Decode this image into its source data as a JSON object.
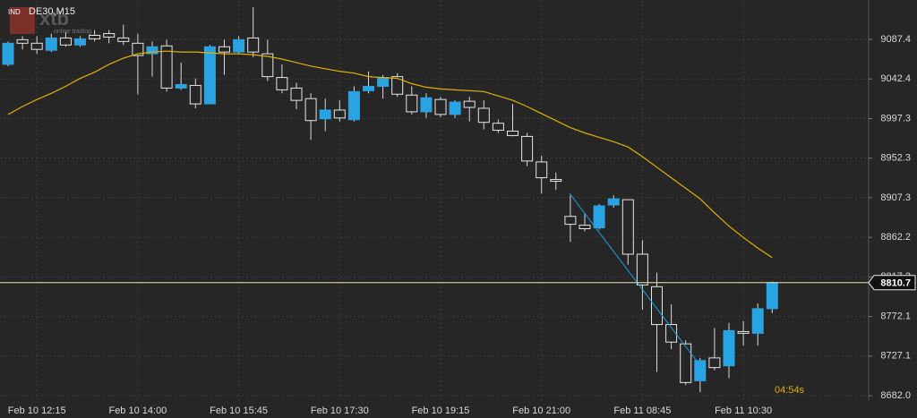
{
  "chart_data": {
    "type": "candlestick",
    "title": "DE30,M15",
    "logo": {
      "badge": "IND",
      "brand": "xtb",
      "tagline": "online trading"
    },
    "timer": "04:54s",
    "categories": [
      null,
      null,
      "Feb 10 12:15",
      null,
      null,
      null,
      null,
      null,
      null,
      "Feb 10 14:00",
      null,
      null,
      null,
      null,
      null,
      null,
      "Feb 10 15:45",
      null,
      null,
      null,
      null,
      null,
      null,
      "Feb 10 17:30",
      null,
      null,
      null,
      null,
      null,
      null,
      "Feb 10 19:15",
      null,
      null,
      null,
      null,
      null,
      null,
      "Feb 10 21:00",
      null,
      null,
      null,
      null,
      null,
      null,
      "Feb 11 08:45",
      null,
      null,
      null,
      null,
      null,
      null,
      "Feb 11 10:30",
      null,
      null
    ],
    "open": [
      9059,
      9087,
      9083,
      9075,
      9089,
      9081,
      9092,
      9094,
      9089,
      9083,
      9071,
      9080,
      9032,
      9035,
      9014,
      9079,
      9073,
      9089,
      9071,
      9044,
      9032,
      9020,
      8997,
      9007,
      8996,
      9029,
      9034,
      9045,
      9024,
      9005,
      9019,
      9002,
      9017,
      9009,
      8992,
      8983,
      8977,
      8948,
      8928,
      8886,
      8876,
      8873,
      8899,
      8905,
      8843,
      8806,
      8763,
      8741,
      8699,
      8725,
      8716,
      8755,
      8753,
      8781
    ],
    "high": [
      9085,
      9091,
      9091,
      9094,
      9096,
      9091,
      9098,
      9098,
      9104,
      9094,
      9085,
      9087,
      9061,
      9043,
      9081,
      9087,
      9091,
      9124,
      9087,
      9059,
      9038,
      9026,
      9020,
      9018,
      9034,
      9051,
      9047,
      9049,
      9034,
      9026,
      9022,
      9018,
      9022,
      9018,
      8996,
      9014,
      8981,
      8955,
      8936,
      8910,
      8890,
      8900,
      8910,
      8905,
      8859,
      8822,
      8786,
      8745,
      8725,
      8759,
      8765,
      8767,
      8787,
      8812
    ],
    "low": [
      9057,
      9076,
      9071,
      9073,
      9079,
      9079,
      9085,
      9083,
      9081,
      9025,
      9045,
      9028,
      9030,
      9009,
      9014,
      9047,
      9071,
      9067,
      9040,
      9026,
      9008,
      8973,
      8983,
      8994,
      8994,
      9026,
      9020,
      9022,
      9002,
      8998,
      8999,
      8998,
      8994,
      8985,
      8981,
      8977,
      8943,
      8912,
      8916,
      8857,
      8869,
      8871,
      8896,
      8831,
      8780,
      8709,
      8735,
      8694,
      8686,
      8711,
      8702,
      8739,
      8739,
      8776
    ],
    "close": [
      9083,
      9083,
      9076,
      9089,
      9081,
      9088,
      9088,
      9090,
      9085,
      9069,
      9079,
      9032,
      9036,
      9014,
      9079,
      9073,
      9087,
      9073,
      9045,
      9030,
      9018,
      8995,
      9007,
      8998,
      9028,
      9034,
      9044,
      9025,
      9005,
      9021,
      9002,
      9016,
      9010,
      8993,
      8984,
      8978,
      8949,
      8930,
      8926,
      8877,
      8872,
      8898,
      8906,
      8843,
      8808,
      8763,
      8743,
      8697,
      8722,
      8714,
      8756,
      8753,
      8781,
      8810.7
    ],
    "moving_average": [
      9002,
      9011,
      9019,
      9026,
      9034,
      9043,
      9050,
      9059,
      9066,
      9071,
      9073,
      9074,
      9073,
      9073,
      9072,
      9071,
      9071,
      9070,
      9068,
      9065,
      9061,
      9057,
      9054,
      9051,
      9049,
      9045,
      9044,
      9043,
      9037,
      9033,
      9031,
      9030,
      9029,
      9028,
      9023,
      9018,
      9011,
      9003,
      8995,
      8987,
      8981,
      8976,
      8971,
      8965,
      8954,
      8942,
      8930,
      8918,
      8906,
      8890,
      8875,
      8862,
      8850,
      8839
    ],
    "up_color": "#2aa3e2",
    "down_color": "#e6e6e6",
    "ma_color": "#e0b000",
    "price_line_color": "#f0e6b0",
    "ylim": [
      8677,
      9132.2
    ],
    "yticks": [
      {
        "value": 8682,
        "label": "8682.0"
      },
      8727.1,
      8772.1,
      8817.2,
      8862.2,
      8907.3,
      8952.3,
      8997.3,
      9042.4,
      9087.4
    ],
    "grid": true
  }
}
